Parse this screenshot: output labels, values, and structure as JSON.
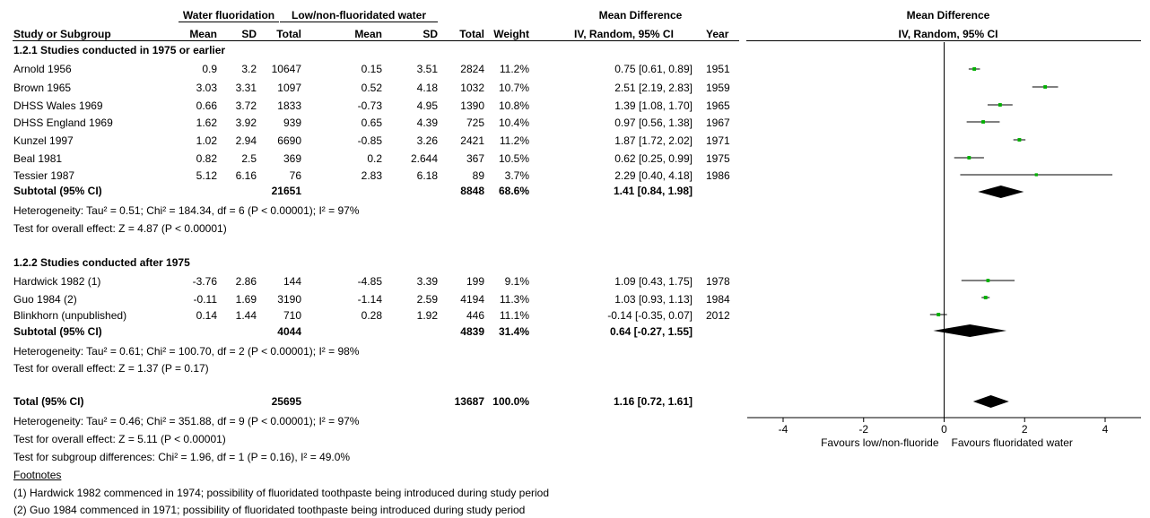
{
  "header": {
    "group1": "Water fluoridation",
    "group2": "Low/non-fluoridated water",
    "effect": "Mean Difference",
    "plot_title": "Mean Difference",
    "plot_method": "IV, Random, 95% CI",
    "cols": {
      "study": "Study or Subgroup",
      "mean1": "Mean",
      "sd1": "SD",
      "total1": "Total",
      "mean2": "Mean",
      "sd2": "SD",
      "total2": "Total",
      "weight": "Weight",
      "ci": "IV, Random, 95% CI",
      "year": "Year"
    }
  },
  "subgroups": [
    {
      "title": "1.2.1 Studies conducted in 1975 or earlier",
      "studies": [
        {
          "name": "Arnold 1956",
          "mean1": "0.9",
          "sd1": "3.2",
          "total1": "10647",
          "mean2": "0.15",
          "sd2": "3.51",
          "total2": "2824",
          "weight": "11.2%",
          "ci": "0.75 [0.61, 0.89]",
          "year": "1951"
        },
        {
          "name": "Brown 1965",
          "mean1": "3.03",
          "sd1": "3.31",
          "total1": "1097",
          "mean2": "0.52",
          "sd2": "4.18",
          "total2": "1032",
          "weight": "10.7%",
          "ci": "2.51 [2.19, 2.83]",
          "year": "1959"
        },
        {
          "name": "DHSS Wales 1969",
          "mean1": "0.66",
          "sd1": "3.72",
          "total1": "1833",
          "mean2": "-0.73",
          "sd2": "4.95",
          "total2": "1390",
          "weight": "10.8%",
          "ci": "1.39 [1.08, 1.70]",
          "year": "1965"
        },
        {
          "name": "DHSS England 1969",
          "mean1": "1.62",
          "sd1": "3.92",
          "total1": "939",
          "mean2": "0.65",
          "sd2": "4.39",
          "total2": "725",
          "weight": "10.4%",
          "ci": "0.97 [0.56, 1.38]",
          "year": "1967"
        },
        {
          "name": "Kunzel 1997",
          "mean1": "1.02",
          "sd1": "2.94",
          "total1": "6690",
          "mean2": "-0.85",
          "sd2": "3.26",
          "total2": "2421",
          "weight": "11.2%",
          "ci": "1.87 [1.72, 2.02]",
          "year": "1971"
        },
        {
          "name": "Beal 1981",
          "mean1": "0.82",
          "sd1": "2.5",
          "total1": "369",
          "mean2": "0.2",
          "sd2": "2.644",
          "total2": "367",
          "weight": "10.5%",
          "ci": "0.62 [0.25, 0.99]",
          "year": "1975"
        },
        {
          "name": "Tessier 1987",
          "mean1": "5.12",
          "sd1": "6.16",
          "total1": "76",
          "mean2": "2.83",
          "sd2": "6.18",
          "total2": "89",
          "weight": "3.7%",
          "ci": "2.29 [0.40, 4.18]",
          "year": "1986"
        }
      ],
      "subtotal": {
        "label": "Subtotal (95% CI)",
        "total1": "21651",
        "total2": "8848",
        "weight": "68.6%",
        "ci": "1.41 [0.84, 1.98]"
      },
      "heterogeneity": "Heterogeneity: Tau² = 0.51; Chi² = 184.34, df = 6 (P < 0.00001); I² = 97%",
      "overall": "Test for overall effect: Z = 4.87 (P < 0.00001)"
    },
    {
      "title": "1.2.2 Studies conducted after 1975",
      "studies": [
        {
          "name": "Hardwick 1982 (1)",
          "mean1": "-3.76",
          "sd1": "2.86",
          "total1": "144",
          "mean2": "-4.85",
          "sd2": "3.39",
          "total2": "199",
          "weight": "9.1%",
          "ci": "1.09 [0.43, 1.75]",
          "year": "1978"
        },
        {
          "name": "Guo 1984 (2)",
          "mean1": "-0.11",
          "sd1": "1.69",
          "total1": "3190",
          "mean2": "-1.14",
          "sd2": "2.59",
          "total2": "4194",
          "weight": "11.3%",
          "ci": "1.03 [0.93, 1.13]",
          "year": "1984"
        },
        {
          "name": "Blinkhorn (unpublished)",
          "mean1": "0.14",
          "sd1": "1.44",
          "total1": "710",
          "mean2": "0.28",
          "sd2": "1.92",
          "total2": "446",
          "weight": "11.1%",
          "ci": "-0.14 [-0.35, 0.07]",
          "year": "2012"
        }
      ],
      "subtotal": {
        "label": "Subtotal (95% CI)",
        "total1": "4044",
        "total2": "4839",
        "weight": "31.4%",
        "ci": "0.64 [-0.27, 1.55]"
      },
      "heterogeneity": "Heterogeneity: Tau² = 0.61; Chi² = 100.70, df = 2 (P < 0.00001); I² = 98%",
      "overall": "Test for overall effect: Z = 1.37 (P = 0.17)"
    }
  ],
  "total": {
    "label": "Total (95% CI)",
    "total1": "25695",
    "total2": "13687",
    "weight": "100.0%",
    "ci": "1.16 [0.72, 1.61]",
    "heterogeneity": "Heterogeneity: Tau² = 0.46; Chi² = 351.88, df = 9 (P < 0.00001); I² = 97%",
    "overall": "Test for overall effect: Z = 5.11 (P < 0.00001)",
    "subgroup_diff": "Test for subgroup differences: Chi² = 1.96, df = 1 (P = 0.16), I² = 49.0%"
  },
  "footnotes": {
    "title": "Footnotes",
    "items": [
      "(1) Hardwick 1982 commenced in 1974; possibility of fluoridated toothpaste being introduced during study period",
      "(2) Guo 1984 commenced in 1971; possibility of fluoridated toothpaste being introduced during study period"
    ]
  },
  "chart_data": {
    "type": "scatter",
    "subtype": "forest_plot",
    "title": "Mean Difference",
    "subtitle": "IV, Random, 95% CI",
    "xlim": [
      -4,
      4
    ],
    "x_ticks": [
      -4,
      -2,
      0,
      2,
      4
    ],
    "xlabel_left": "Favours low/non-fluoride",
    "xlabel_right": "Favours fluoridated water",
    "colors": {
      "marker": "#00b000",
      "diamond": "#000000",
      "line": "#000000"
    },
    "points": [
      {
        "study": "Arnold 1956",
        "est": 0.75,
        "lo": 0.61,
        "hi": 0.89,
        "weight": 11.2
      },
      {
        "study": "Brown 1965",
        "est": 2.51,
        "lo": 2.19,
        "hi": 2.83,
        "weight": 10.7
      },
      {
        "study": "DHSS Wales 1969",
        "est": 1.39,
        "lo": 1.08,
        "hi": 1.7,
        "weight": 10.8
      },
      {
        "study": "DHSS England 1969",
        "est": 0.97,
        "lo": 0.56,
        "hi": 1.38,
        "weight": 10.4
      },
      {
        "study": "Kunzel 1997",
        "est": 1.87,
        "lo": 1.72,
        "hi": 2.02,
        "weight": 11.2
      },
      {
        "study": "Beal 1981",
        "est": 0.62,
        "lo": 0.25,
        "hi": 0.99,
        "weight": 10.5
      },
      {
        "study": "Tessier 1987",
        "est": 2.29,
        "lo": 0.4,
        "hi": 4.18,
        "weight": 3.7
      },
      {
        "study": "Hardwick 1982 (1)",
        "est": 1.09,
        "lo": 0.43,
        "hi": 1.75,
        "weight": 9.1
      },
      {
        "study": "Guo 1984 (2)",
        "est": 1.03,
        "lo": 0.93,
        "hi": 1.13,
        "weight": 11.3
      },
      {
        "study": "Blinkhorn (unpublished)",
        "est": -0.14,
        "lo": -0.35,
        "hi": 0.07,
        "weight": 11.1
      }
    ],
    "diamonds": [
      {
        "label": "Subtotal (95% CI)",
        "est": 1.41,
        "lo": 0.84,
        "hi": 1.98
      },
      {
        "label": "Subtotal (95% CI)",
        "est": 0.64,
        "lo": -0.27,
        "hi": 1.55
      },
      {
        "label": "Total (95% CI)",
        "est": 1.16,
        "lo": 0.72,
        "hi": 1.61
      }
    ]
  }
}
